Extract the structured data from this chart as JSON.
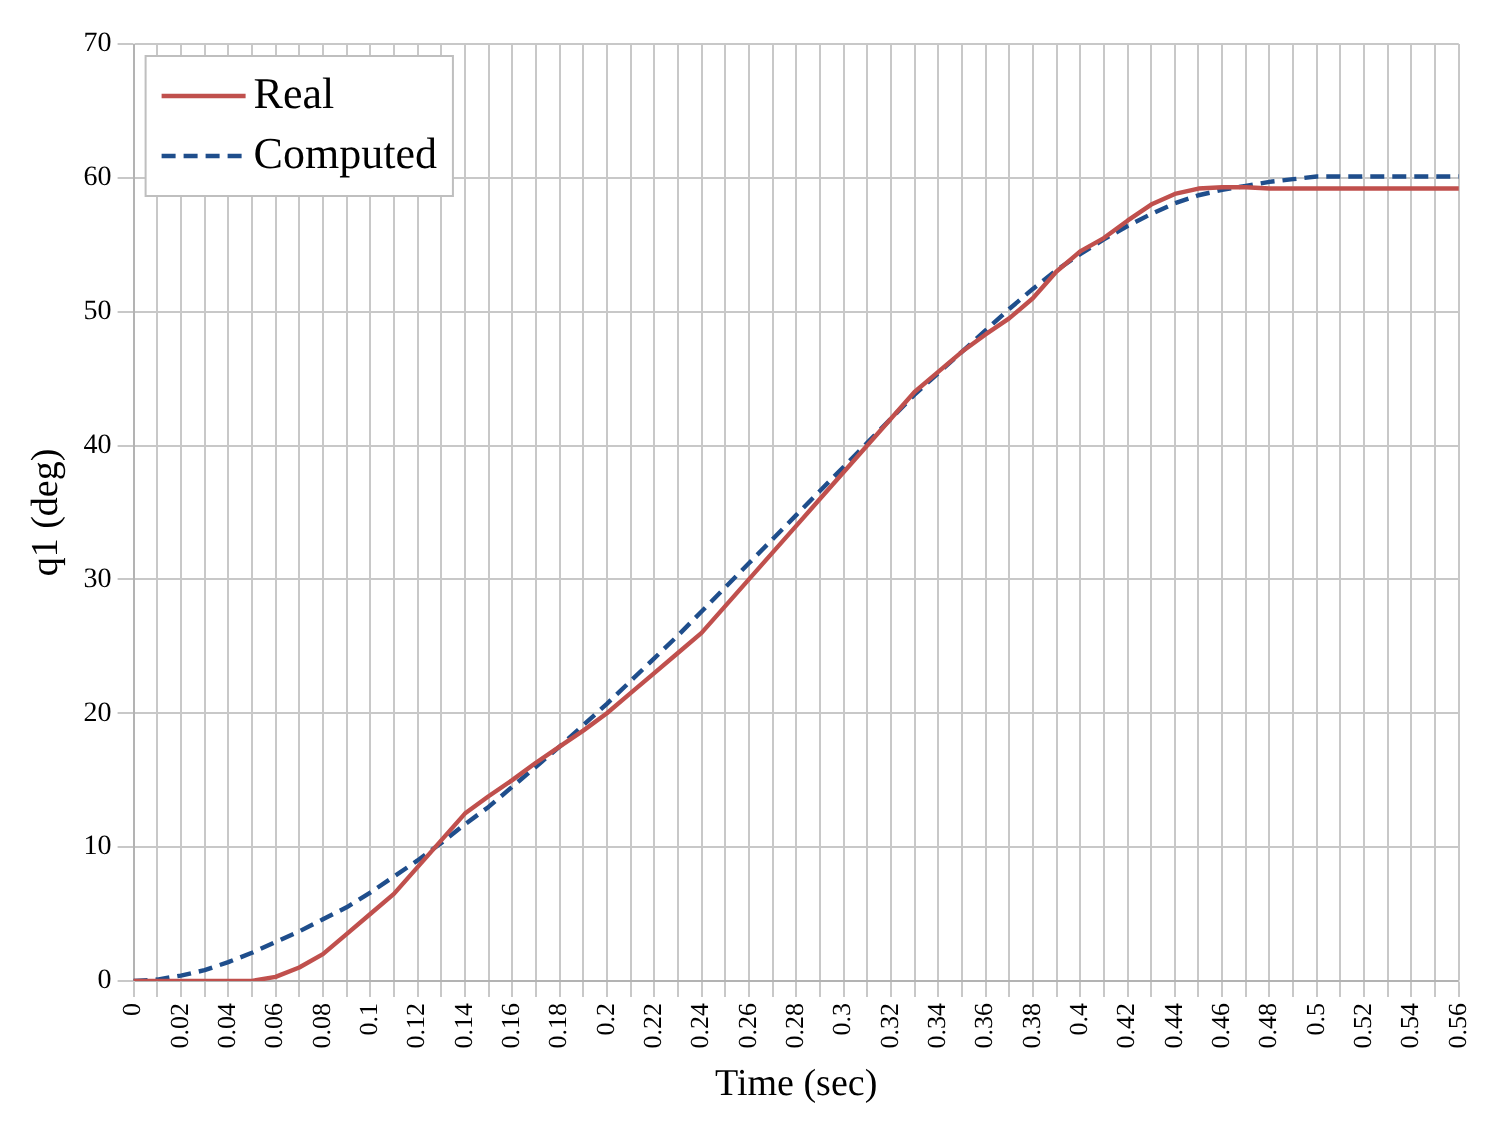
{
  "chart_data": {
    "type": "line",
    "xlabel": "Time (sec)",
    "ylabel": "q1 (deg)",
    "categories": [
      "0",
      null,
      "0.02",
      null,
      "0.04",
      null,
      "0.06",
      null,
      "0.08",
      null,
      "0.1",
      null,
      "0.12",
      null,
      "0.14",
      null,
      "0.16",
      null,
      "0.18",
      null,
      "0.2",
      null,
      "0.22",
      null,
      "0.24",
      null,
      "0.26",
      null,
      "0.28",
      null,
      "0.3",
      null,
      "0.32",
      null,
      "0.34",
      null,
      "0.36",
      null,
      "0.38",
      null,
      "0.4",
      null,
      "0.42",
      null,
      "0.44",
      null,
      "0.46",
      null,
      "0.48",
      null,
      "0.5",
      null,
      "0.52",
      null,
      "0.54",
      null,
      "0.56"
    ],
    "series": [
      {
        "name": "Real",
        "color": "#c0504d",
        "line_style": "solid",
        "values": [
          0,
          0,
          0,
          0,
          0,
          0,
          0.3,
          1,
          2,
          3.5,
          5,
          6.5,
          8.5,
          10.5,
          12.5,
          13.8,
          15,
          16.3,
          17.5,
          18.7,
          20,
          21.5,
          23,
          24.5,
          26,
          28,
          30,
          32,
          34,
          36,
          38,
          40,
          42,
          44,
          45.5,
          47,
          48.3,
          49.5,
          51,
          53,
          54.5,
          55.5,
          56.8,
          58,
          58.8,
          59.2,
          59.3,
          59.3,
          59.2,
          59.2,
          59.2,
          59.2,
          59.2,
          59.2,
          59.2,
          59.2,
          59.2
        ]
      },
      {
        "name": "Computed",
        "color": "#1f4e8c",
        "line_style": "dashed",
        "values": [
          0,
          0.1,
          0.4,
          0.8,
          1.4,
          2.1,
          2.9,
          3.7,
          4.6,
          5.5,
          6.6,
          7.8,
          9,
          10.3,
          11.7,
          13,
          14.5,
          16,
          17.5,
          19.1,
          20.7,
          22.4,
          24.1,
          25.8,
          27.6,
          29.4,
          31.2,
          33,
          34.8,
          36.6,
          38.4,
          40.2,
          42,
          43.8,
          45.4,
          47,
          48.6,
          50.2,
          51.7,
          53.1,
          54.3,
          55.4,
          56.4,
          57.3,
          58.1,
          58.7,
          59.1,
          59.4,
          59.7,
          59.9,
          60.1,
          60.1,
          60.1,
          60.1,
          60.1,
          60.1,
          60.1
        ]
      }
    ],
    "ylim": [
      0,
      70
    ],
    "yticks": [
      0,
      10,
      20,
      30,
      40,
      50,
      60,
      70
    ],
    "grid": true,
    "legend": "top left",
    "marker": "none"
  }
}
